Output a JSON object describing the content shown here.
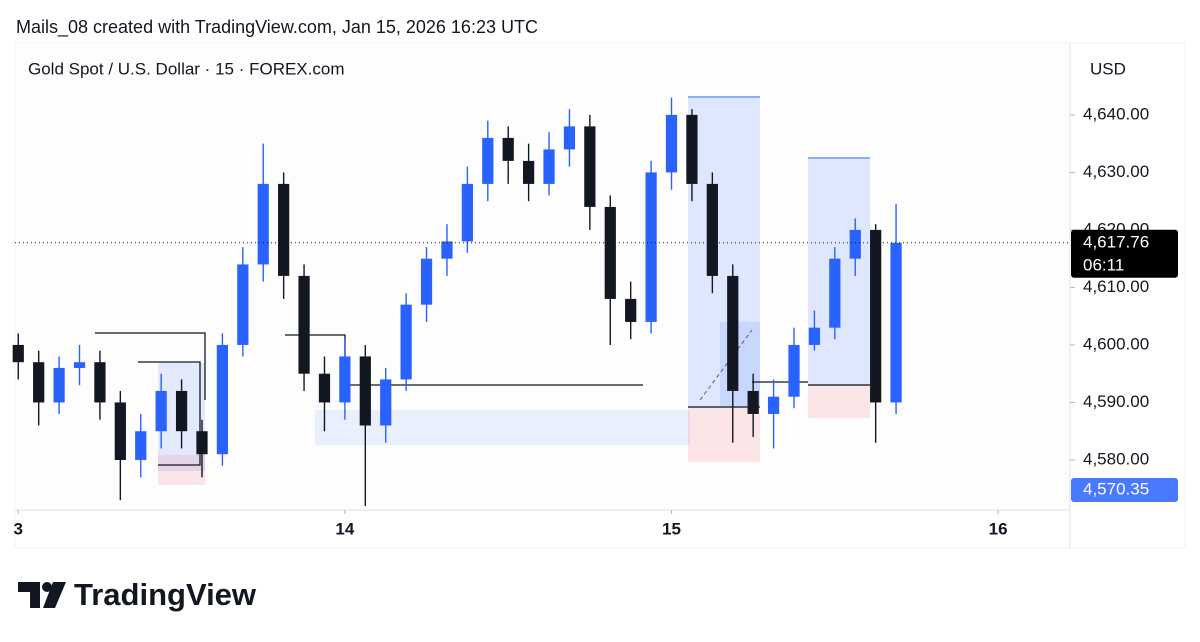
{
  "header": "Mails_08 created with TradingView.com, Jan 15, 2026 16:23 UTC",
  "footer": {
    "logo_text": "TradingView"
  },
  "chart_data": {
    "type": "candlestick",
    "title": "Gold Spot / U.S. Dollar · 15 · FOREX.com",
    "currency": "USD",
    "up_color": "#2962ff",
    "down_color": "#131722",
    "x": [
      13,
      13.0625,
      13.125,
      13.1875,
      13.25,
      13.3125,
      13.375,
      13.4375,
      13.5,
      13.5625,
      13.625,
      13.6875,
      13.75,
      13.8125,
      13.875,
      13.9375,
      14,
      14.0625,
      14.125,
      14.1875,
      14.25,
      14.3125,
      14.375,
      14.4375,
      14.5,
      14.5625,
      14.625,
      14.6875,
      14.75,
      14.8125,
      14.875,
      14.9375,
      15,
      15.0625,
      15.125,
      15.1875,
      15.25,
      15.3125,
      15.375,
      15.4375,
      15.5,
      15.5625,
      15.625,
      15.6875
    ],
    "open": [
      4600,
      4597,
      4590,
      4596,
      4597,
      4590,
      4580,
      4585,
      4592,
      4585,
      4581,
      4600,
      4614,
      4628,
      4612,
      4595,
      4590,
      4598,
      4586,
      4594,
      4607,
      4615,
      4618,
      4628,
      4636,
      4632,
      4628,
      4634,
      4638,
      4624,
      4608,
      4604,
      4630,
      4640,
      4628,
      4612,
      4592,
      4588,
      4591,
      4600,
      4603,
      4615,
      4620,
      4590
    ],
    "high": [
      4602,
      4599,
      4598,
      4600,
      4599,
      4592,
      4588,
      4595,
      4594,
      4587,
      4602,
      4617,
      4635,
      4630,
      4614,
      4598,
      4601,
      4600,
      4596,
      4609,
      4617,
      4621,
      4631,
      4639,
      4638,
      4635,
      4637,
      4641,
      4640,
      4626,
      4611,
      4632,
      4643,
      4641,
      4630,
      4614,
      4595,
      4594,
      4603,
      4606,
      4617,
      4622,
      4621,
      4624.5
    ],
    "low": [
      4594,
      4586,
      4588,
      4593,
      4587,
      4573,
      4577,
      4582,
      4582,
      4577,
      4579,
      4598,
      4611,
      4608,
      4592,
      4585,
      4587,
      4572,
      4583,
      4592,
      4604,
      4612,
      4616,
      4625,
      4628,
      4625,
      4626,
      4631,
      4620,
      4600,
      4601,
      4602,
      4627,
      4625,
      4609,
      4583,
      4584,
      4582,
      4589,
      4599,
      4601,
      4612,
      4583,
      4588
    ],
    "close": [
      4597,
      4590,
      4596,
      4597,
      4590,
      4580,
      4585,
      4592,
      4585,
      4581,
      4600,
      4614,
      4628,
      4612,
      4595,
      4590,
      4598,
      4586,
      4594,
      4607,
      4615,
      4618,
      4628,
      4636,
      4632,
      4628,
      4634,
      4638,
      4624,
      4608,
      4604,
      4630,
      4640,
      4628,
      4612,
      4592,
      4588,
      4591,
      4600,
      4603,
      4615,
      4620,
      4590,
      4617.76
    ],
    "xlim": [
      12.99,
      16.22
    ],
    "xticks": [
      {
        "value": 13,
        "label": "3"
      },
      14,
      15,
      16
    ],
    "ylim": [
      4571.3,
      4652.5
    ],
    "yticks": [
      {
        "value": 4580,
        "label": "4,580.00"
      },
      {
        "value": 4590,
        "label": "4,590.00"
      },
      {
        "value": 4600,
        "label": "4,600.00"
      },
      {
        "value": 4610,
        "label": "4,610.00"
      },
      {
        "value": 4620,
        "label": "4,620.00"
      },
      {
        "value": 4630,
        "label": "4,630.00"
      },
      {
        "value": 4640,
        "label": "4,640.00"
      }
    ],
    "last_price": {
      "value": 4617.76,
      "label": "4,617.76",
      "countdown": "06:11"
    },
    "bid_price": {
      "value": 4570.35,
      "label": "4,570.35"
    }
  }
}
